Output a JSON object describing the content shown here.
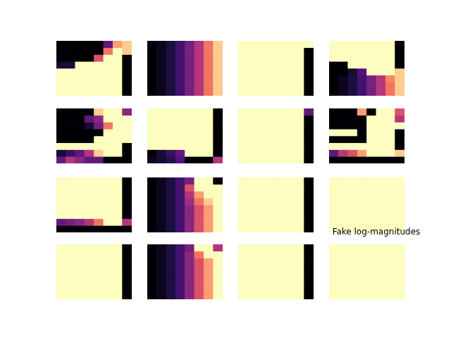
{
  "chart_data": {
    "type": "heatmap_grid",
    "title": "Fake log-magnitudes",
    "color": "magma",
    "zlim": [
      0,
      1
    ],
    "tick_labels": false,
    "panels": [
      [
        [
          0,
          0,
          0,
          0,
          0,
          0.3,
          0.8,
          0.9
        ],
        [
          0,
          0,
          0,
          0,
          0,
          0.7,
          1,
          0.9
        ],
        [
          0,
          0,
          0,
          0,
          0.6,
          1,
          1,
          0
        ],
        [
          0.1,
          0.1,
          1,
          1,
          1,
          1,
          1,
          0
        ],
        [
          1,
          1,
          1,
          1,
          1,
          1,
          1,
          0
        ],
        [
          1,
          1,
          1,
          1,
          1,
          1,
          1,
          0
        ],
        [
          1,
          1,
          1,
          1,
          1,
          1,
          1,
          0
        ],
        [
          1,
          1,
          1,
          1,
          1,
          1,
          1,
          0
        ]
      ],
      [
        [
          0,
          0.05,
          0.12,
          0.22,
          0.35,
          0.5,
          0.7,
          0.9
        ],
        [
          0,
          0.05,
          0.12,
          0.22,
          0.35,
          0.5,
          0.7,
          0.9
        ],
        [
          0,
          0.05,
          0.12,
          0.22,
          0.35,
          0.5,
          0.7,
          0.9
        ],
        [
          0,
          0.05,
          0.12,
          0.22,
          0.35,
          0.5,
          0.7,
          0.9
        ],
        [
          0,
          0.05,
          0.12,
          0.22,
          0.35,
          0.5,
          0.7,
          0.9
        ],
        [
          0,
          0.05,
          0.12,
          0.22,
          0.35,
          0.5,
          0.7,
          0.9
        ],
        [
          0,
          0.05,
          0.12,
          0.22,
          0.35,
          0.5,
          0.7,
          0.9
        ],
        [
          0,
          0.05,
          0.12,
          0.22,
          0.35,
          0.5,
          0.7,
          0.9
        ]
      ],
      [
        [
          1,
          1,
          1,
          1,
          1,
          1,
          1,
          1
        ],
        [
          1,
          1,
          1,
          1,
          1,
          1,
          1,
          0
        ],
        [
          1,
          1,
          1,
          1,
          1,
          1,
          1,
          0
        ],
        [
          1,
          1,
          1,
          1,
          1,
          1,
          1,
          0
        ],
        [
          1,
          1,
          1,
          1,
          1,
          1,
          1,
          0
        ],
        [
          1,
          1,
          1,
          1,
          1,
          1,
          1,
          0
        ],
        [
          1,
          1,
          1,
          1,
          1,
          1,
          1,
          0
        ],
        [
          1,
          1,
          1,
          1,
          1,
          1,
          1,
          0
        ]
      ],
      [
        [
          1,
          1,
          1,
          1,
          1,
          1,
          1,
          0
        ],
        [
          1,
          1,
          1,
          1,
          1,
          1,
          1,
          0
        ],
        [
          1,
          1,
          1,
          1,
          1,
          1,
          1,
          0
        ],
        [
          0,
          0,
          1,
          1,
          1,
          1,
          1,
          0
        ],
        [
          0,
          0,
          0.1,
          0.25,
          1,
          1,
          1,
          0.9
        ],
        [
          0,
          0.05,
          0.12,
          0.22,
          0.35,
          0.5,
          0.75,
          0.9
        ],
        [
          0,
          0.05,
          0.12,
          0.22,
          0.35,
          0.5,
          0.7,
          0.9
        ],
        [
          0,
          0.05,
          0.12,
          0.22,
          0.35,
          0.5,
          0.7,
          0.9
        ]
      ],
      [
        [
          0,
          0,
          0,
          0,
          0.9,
          1,
          1,
          0.4
        ],
        [
          0,
          0,
          0,
          0.3,
          0.4,
          1,
          1,
          1
        ],
        [
          0,
          0,
          0,
          0.1,
          0.35,
          0.7,
          1,
          1
        ],
        [
          0,
          0,
          0,
          0,
          0,
          1,
          1,
          1
        ],
        [
          0,
          0,
          0,
          0,
          1,
          1,
          1,
          1
        ],
        [
          1,
          1,
          1,
          1,
          1,
          1,
          1,
          0
        ],
        [
          0.1,
          0.2,
          0.3,
          0.5,
          0.9,
          1,
          1,
          0
        ],
        [
          0.3,
          0.5,
          0.4,
          0.3,
          0.3,
          0,
          0,
          0
        ]
      ],
      [
        [
          1,
          1,
          1,
          1,
          1,
          1,
          1,
          0
        ],
        [
          1,
          1,
          1,
          1,
          1,
          1,
          1,
          0
        ],
        [
          1,
          1,
          1,
          1,
          1,
          1,
          1,
          0
        ],
        [
          1,
          1,
          1,
          1,
          1,
          1,
          1,
          0
        ],
        [
          1,
          1,
          1,
          1,
          1,
          1,
          1,
          0
        ],
        [
          1,
          1,
          1,
          1,
          1,
          1,
          1,
          0
        ],
        [
          0,
          0.1,
          0.2,
          0.3,
          1,
          1,
          1,
          0
        ],
        [
          0.05,
          0.1,
          0.15,
          0.25,
          0,
          0,
          0,
          0.5
        ]
      ],
      [
        [
          1,
          1,
          1,
          1,
          1,
          1,
          1,
          0.3
        ],
        [
          1,
          1,
          1,
          1,
          1,
          1,
          1,
          0
        ],
        [
          1,
          1,
          1,
          1,
          1,
          1,
          1,
          0
        ],
        [
          1,
          1,
          1,
          1,
          1,
          1,
          1,
          0
        ],
        [
          1,
          1,
          1,
          1,
          1,
          1,
          1,
          0
        ],
        [
          1,
          1,
          1,
          1,
          1,
          1,
          1,
          0
        ],
        [
          1,
          1,
          1,
          1,
          1,
          1,
          1,
          0
        ],
        [
          1,
          1,
          1,
          1,
          1,
          1,
          1,
          0
        ]
      ],
      [
        [
          0,
          0,
          0,
          0.8,
          0,
          1,
          1,
          0.6
        ],
        [
          0,
          0,
          0,
          0,
          1,
          1,
          1,
          0.5
        ],
        [
          0,
          0,
          0,
          0,
          1,
          1,
          1,
          1
        ],
        [
          1,
          1,
          1,
          0,
          1,
          1,
          1,
          0
        ],
        [
          0,
          0,
          0,
          0,
          1,
          1,
          1,
          0
        ],
        [
          1,
          1,
          1,
          1,
          1,
          1,
          1,
          0
        ],
        [
          0.3,
          0.5,
          0.6,
          0.8,
          1,
          1,
          1,
          0.9
        ],
        [
          0,
          0,
          0,
          0,
          0,
          0,
          0,
          0
        ]
      ],
      [
        [
          1,
          1,
          1,
          1,
          1,
          1,
          1,
          0
        ],
        [
          1,
          1,
          1,
          1,
          1,
          1,
          1,
          0
        ],
        [
          1,
          1,
          1,
          1,
          1,
          1,
          1,
          0
        ],
        [
          1,
          1,
          1,
          1,
          1,
          1,
          1,
          0
        ],
        [
          1,
          1,
          1,
          1,
          1,
          1,
          1,
          0
        ],
        [
          1,
          1,
          1,
          1,
          1,
          1,
          1,
          0
        ],
        [
          0.3,
          0.35,
          0.4,
          0.5,
          0.7,
          1,
          1,
          0.5
        ],
        [
          0,
          0,
          0,
          0,
          0,
          0,
          0,
          0
        ]
      ],
      [
        [
          0,
          0.05,
          0.12,
          0.22,
          0.35,
          1,
          1,
          0
        ],
        [
          0,
          0.05,
          0.12,
          0.22,
          0.6,
          1,
          1,
          1
        ],
        [
          0,
          0.05,
          0.12,
          0.22,
          0.5,
          0.8,
          1,
          1
        ],
        [
          0,
          0.05,
          0.12,
          0.22,
          0.45,
          0.7,
          0.9,
          1
        ],
        [
          0,
          0.05,
          0.12,
          0.22,
          0.4,
          0.6,
          0.8,
          1
        ],
        [
          0,
          0.05,
          0.12,
          0.22,
          0.4,
          0.6,
          0.8,
          1
        ],
        [
          0,
          0.05,
          0.12,
          0.22,
          0.4,
          0.6,
          0.8,
          1
        ],
        [
          0,
          0.05,
          0.12,
          0.22,
          0.4,
          0.6,
          0.8,
          1
        ]
      ],
      [
        [
          1,
          1,
          1,
          1,
          1,
          1,
          1,
          0
        ],
        [
          1,
          1,
          1,
          1,
          1,
          1,
          1,
          0
        ],
        [
          1,
          1,
          1,
          1,
          1,
          1,
          1,
          0
        ],
        [
          1,
          1,
          1,
          1,
          1,
          1,
          1,
          0
        ],
        [
          1,
          1,
          1,
          1,
          1,
          1,
          1,
          0
        ],
        [
          1,
          1,
          1,
          1,
          1,
          1,
          1,
          0
        ],
        [
          1,
          1,
          1,
          1,
          1,
          1,
          1,
          0
        ],
        [
          1,
          1,
          1,
          1,
          1,
          1,
          1,
          0
        ]
      ],
      [
        [
          1,
          1,
          1,
          1,
          1,
          1,
          1,
          1
        ],
        [
          1,
          1,
          1,
          1,
          1,
          1,
          1,
          1
        ],
        [
          1,
          1,
          1,
          1,
          1,
          1,
          1,
          1
        ],
        [
          1,
          1,
          1,
          1,
          1,
          1,
          1,
          1
        ],
        [
          1,
          1,
          1,
          1,
          1,
          1,
          1,
          1
        ],
        [
          1,
          1,
          1,
          1,
          1,
          1,
          1,
          1
        ],
        [
          1,
          1,
          1,
          1,
          1,
          1,
          1,
          1
        ],
        [
          1,
          1,
          1,
          1,
          1,
          1,
          1,
          1
        ]
      ],
      [
        [
          1,
          1,
          1,
          1,
          1,
          1,
          1,
          0
        ],
        [
          1,
          1,
          1,
          1,
          1,
          1,
          1,
          0
        ],
        [
          1,
          1,
          1,
          1,
          1,
          1,
          1,
          0
        ],
        [
          1,
          1,
          1,
          1,
          1,
          1,
          1,
          0
        ],
        [
          1,
          1,
          1,
          1,
          1,
          1,
          1,
          0
        ],
        [
          1,
          1,
          1,
          1,
          1,
          1,
          1,
          0
        ],
        [
          1,
          1,
          1,
          1,
          1,
          1,
          1,
          0
        ],
        [
          1,
          1,
          1,
          1,
          1,
          1,
          1,
          0
        ]
      ],
      [
        [
          0,
          0.05,
          0.12,
          0.22,
          0.35,
          1,
          1,
          0.5
        ],
        [
          0,
          0.05,
          0.12,
          0.22,
          0.4,
          0.7,
          1,
          1
        ],
        [
          0,
          0.05,
          0.12,
          0.22,
          0.4,
          0.6,
          0.8,
          1
        ],
        [
          0,
          0.05,
          0.12,
          0.22,
          0.4,
          0.6,
          0.8,
          1
        ],
        [
          0,
          0.05,
          0.12,
          0.22,
          0.4,
          0.6,
          0.8,
          1
        ],
        [
          0,
          0.05,
          0.12,
          0.22,
          0.4,
          0.6,
          0.8,
          1
        ],
        [
          0,
          0.05,
          0.12,
          0.22,
          0.4,
          0.6,
          0.8,
          1
        ],
        [
          0,
          0.05,
          0.12,
          0.22,
          0.4,
          0.6,
          0.8,
          1
        ]
      ],
      [
        [
          1,
          1,
          1,
          1,
          1,
          1,
          1,
          0
        ],
        [
          1,
          1,
          1,
          1,
          1,
          1,
          1,
          0
        ],
        [
          1,
          1,
          1,
          1,
          1,
          1,
          1,
          0
        ],
        [
          1,
          1,
          1,
          1,
          1,
          1,
          1,
          0
        ],
        [
          1,
          1,
          1,
          1,
          1,
          1,
          1,
          0
        ],
        [
          1,
          1,
          1,
          1,
          1,
          1,
          1,
          0
        ],
        [
          1,
          1,
          1,
          1,
          1,
          1,
          1,
          0
        ],
        [
          1,
          1,
          1,
          1,
          1,
          1,
          1,
          0
        ]
      ],
      [
        [
          1,
          1,
          1,
          1,
          1,
          1,
          1,
          1
        ],
        [
          1,
          1,
          1,
          1,
          1,
          1,
          1,
          1
        ],
        [
          1,
          1,
          1,
          1,
          1,
          1,
          1,
          1
        ],
        [
          1,
          1,
          1,
          1,
          1,
          1,
          1,
          1
        ],
        [
          1,
          1,
          1,
          1,
          1,
          1,
          1,
          1
        ],
        [
          1,
          1,
          1,
          1,
          1,
          1,
          1,
          1
        ],
        [
          1,
          1,
          1,
          1,
          1,
          1,
          1,
          1
        ],
        [
          1,
          1,
          1,
          1,
          1,
          1,
          1,
          1
        ]
      ]
    ]
  }
}
